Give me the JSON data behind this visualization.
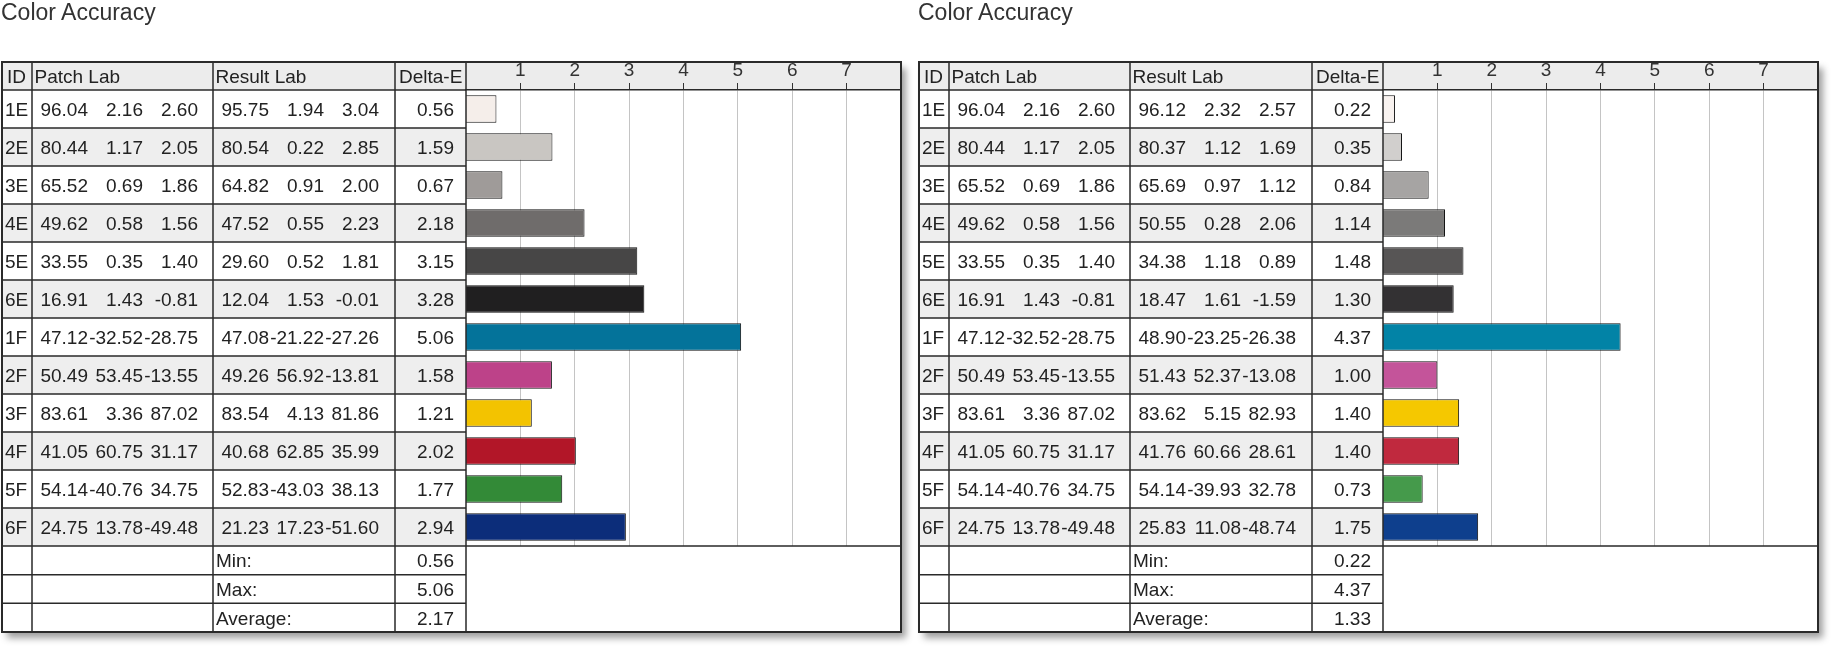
{
  "chart_data": [
    {
      "type": "bar",
      "orientation": "horizontal",
      "title": "Color Accuracy",
      "ylabel": "ID",
      "x2label": "Delta-E",
      "categories": [
        "1E",
        "2E",
        "3E",
        "4E",
        "5E",
        "6E",
        "1F",
        "2F",
        "3F",
        "4F",
        "5F",
        "6F"
      ],
      "series": [
        {
          "axis": "x2",
          "values": [
            0.56,
            1.59,
            0.67,
            2.18,
            3.15,
            3.28,
            5.06,
            1.58,
            1.21,
            2.02,
            1.77,
            2.94
          ],
          "value_labels": [
            "0.56",
            "1.59",
            "0.67",
            "2.18",
            "3.15",
            "3.28",
            "5.06",
            "1.58",
            "1.21",
            "2.02",
            "1.77",
            "2.94"
          ],
          "colors": [
            "#f5eeea",
            "#c9c6c2",
            "#9f9b99",
            "#6f6c6b",
            "#474646",
            "#201f20",
            "#04739a",
            "#bd4289",
            "#f3c300",
            "#b21628",
            "#338a37",
            "#0c2d7a"
          ]
        }
      ],
      "x2lim": [
        0,
        8
      ],
      "x2ticks": [
        1,
        2,
        3,
        4,
        5,
        6,
        7
      ],
      "grid": "x",
      "annotations": [
        "Patch Lab",
        "Result Lab",
        "96.04",
        "2.16",
        "2.60",
        "95.75",
        "1.94",
        "3.04",
        "80.44",
        "1.17",
        "2.05",
        "80.54",
        "0.22",
        "2.85",
        "65.52",
        "0.69",
        "1.86",
        "64.82",
        "0.91",
        "2.00",
        "49.62",
        "0.58",
        "1.56",
        "47.52",
        "0.55",
        "2.23",
        "33.55",
        "0.35",
        "1.40",
        "29.60",
        "0.52",
        "1.81",
        "16.91",
        "1.43",
        "-0.81",
        "12.04",
        "1.53",
        "-0.01",
        "47.12",
        "-32.52",
        "-28.75",
        "47.08",
        "-21.22",
        "-27.26",
        "50.49",
        "53.45",
        "-13.55",
        "49.26",
        "56.92",
        "-13.81",
        "83.61",
        "3.36",
        "87.02",
        "83.54",
        "4.13",
        "81.86",
        "41.05",
        "60.75",
        "31.17",
        "40.68",
        "62.85",
        "35.99",
        "54.14",
        "-40.76",
        "34.75",
        "52.83",
        "-43.03",
        "38.13",
        "24.75",
        "13.78",
        "-49.48",
        "21.23",
        "17.23",
        "-51.60",
        "Min:",
        "0.56",
        "Max:",
        "5.06",
        "Average:",
        "2.17"
      ]
    },
    {
      "type": "bar",
      "orientation": "horizontal",
      "title": "Color Accuracy",
      "ylabel": "ID",
      "x2label": "Delta-E",
      "categories": [
        "1E",
        "2E",
        "3E",
        "4E",
        "5E",
        "6E",
        "1F",
        "2F",
        "3F",
        "4F",
        "5F",
        "6F"
      ],
      "series": [
        {
          "axis": "x2",
          "values": [
            0.22,
            0.35,
            0.84,
            1.14,
            1.48,
            1.3,
            4.37,
            1.0,
            1.4,
            1.4,
            0.73,
            1.75
          ],
          "value_labels": [
            "0.22",
            "0.35",
            "0.84",
            "1.14",
            "1.48",
            "1.30",
            "4.37",
            "1.00",
            "1.40",
            "1.40",
            "0.73",
            "1.75"
          ],
          "colors": [
            "#f8f2ef",
            "#d1cfcd",
            "#a6a4a3",
            "#7b7a79",
            "#575555",
            "#333133",
            "#0283a6",
            "#c4549a",
            "#f5c800",
            "#c0293e",
            "#459a4b",
            "#0e3f8d"
          ]
        }
      ],
      "x2lim": [
        0,
        8
      ],
      "x2ticks": [
        1,
        2,
        3,
        4,
        5,
        6,
        7
      ],
      "grid": "x",
      "annotations": [
        "Patch Lab",
        "Result Lab",
        "96.04",
        "2.16",
        "2.60",
        "96.12",
        "2.32",
        "2.57",
        "80.44",
        "1.17",
        "2.05",
        "80.37",
        "1.12",
        "1.69",
        "65.52",
        "0.69",
        "1.86",
        "65.69",
        "0.97",
        "1.12",
        "49.62",
        "0.58",
        "1.56",
        "50.55",
        "0.28",
        "2.06",
        "33.55",
        "0.35",
        "1.40",
        "34.38",
        "1.18",
        "0.89",
        "16.91",
        "1.43",
        "-0.81",
        "18.47",
        "1.61",
        "-1.59",
        "47.12",
        "-32.52",
        "-28.75",
        "48.90",
        "-23.25",
        "-26.38",
        "50.49",
        "53.45",
        "-13.55",
        "51.43",
        "52.37",
        "-13.08",
        "83.61",
        "3.36",
        "87.02",
        "83.62",
        "5.15",
        "82.93",
        "41.05",
        "60.75",
        "31.17",
        "41.76",
        "60.66",
        "28.61",
        "54.14",
        "-40.76",
        "34.75",
        "54.14",
        "-39.93",
        "32.78",
        "24.75",
        "13.78",
        "-49.48",
        "25.83",
        "11.08",
        "-48.74",
        "Min:",
        "0.22",
        "Max:",
        "4.37",
        "Average:",
        "1.33"
      ]
    }
  ]
}
